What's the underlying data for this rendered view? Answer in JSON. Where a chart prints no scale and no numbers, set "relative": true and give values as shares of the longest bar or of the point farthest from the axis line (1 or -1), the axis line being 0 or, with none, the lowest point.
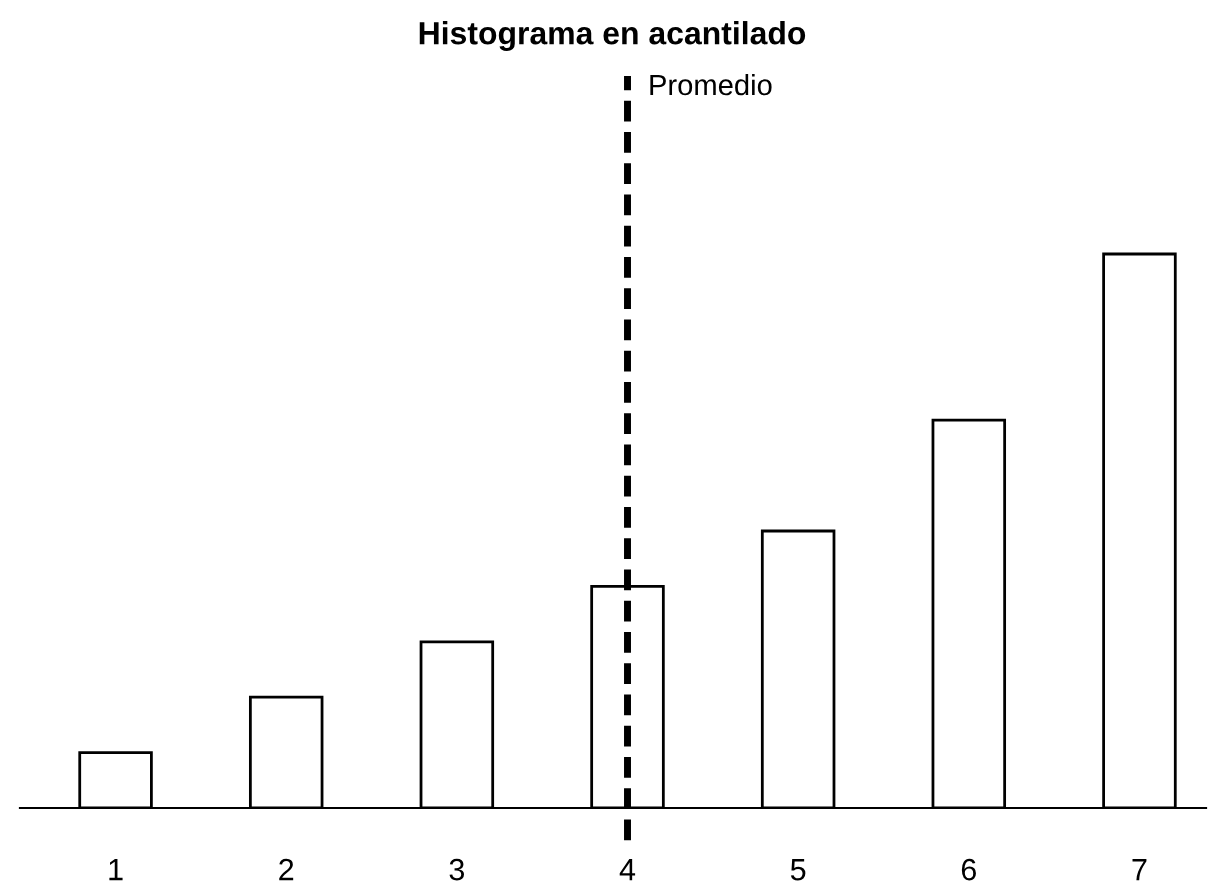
{
  "chart_data": {
    "type": "bar",
    "title": "Histograma en acantilado",
    "categories": [
      "1",
      "2",
      "3",
      "4",
      "5",
      "6",
      "7"
    ],
    "values": [
      0.1,
      0.2,
      0.3,
      0.4,
      0.5,
      0.7,
      1.0
    ],
    "color": "#ffffff",
    "relative": true,
    "grid": false,
    "legend": false,
    "ref_lines": [
      {
        "axis": "x",
        "value": "4",
        "label": "Promedio",
        "color": "#000000",
        "line_style": "dashed"
      }
    ]
  }
}
